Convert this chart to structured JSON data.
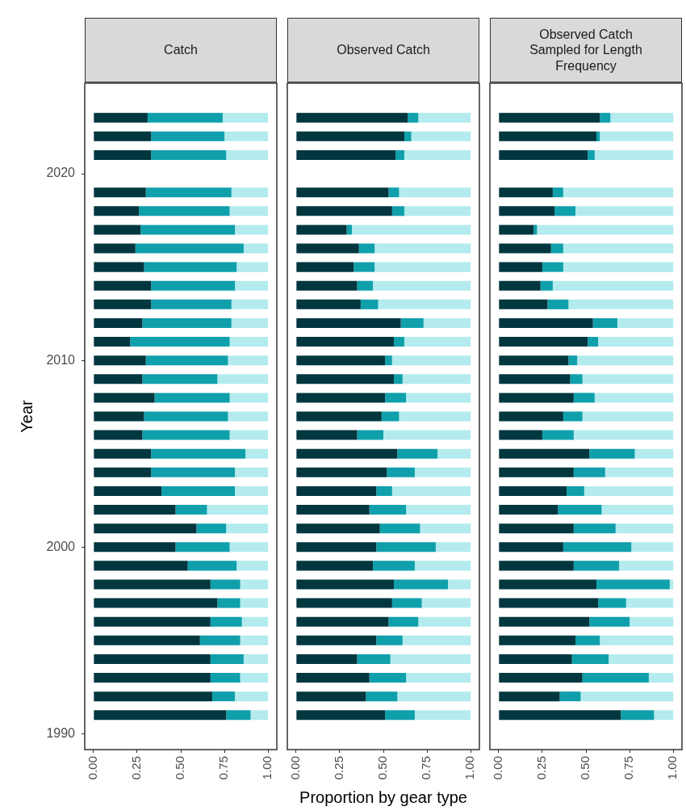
{
  "chart_data": [
    {
      "type": "bar",
      "title": "Catch",
      "ylabel": "Year",
      "orientation": "horizontal",
      "stacked": true,
      "grid": false,
      "x": [
        2023,
        2022,
        2021,
        2019,
        2018,
        2017,
        2016,
        2015,
        2014,
        2013,
        2012,
        2011,
        2010,
        2009,
        2008,
        2007,
        2006,
        2005,
        2004,
        2003,
        2002,
        2001,
        2000,
        1999,
        1998,
        1997,
        1996,
        1995,
        1994,
        1993,
        1992,
        1991
      ],
      "xlim": [
        -0.05,
        1.05
      ],
      "xticks": [
        {
          "value": 0,
          "label": "0.00"
        },
        {
          "value": 0.25,
          "label": "0.25"
        },
        {
          "value": 0.5,
          "label": "0.50"
        },
        {
          "value": 0.75,
          "label": "0.75"
        },
        {
          "value": 1,
          "label": "1.00"
        }
      ],
      "ylim": [
        1989.15,
        2024.85
      ],
      "yticks": [
        1990,
        2000,
        2010,
        2020
      ],
      "series": [
        {
          "color": "#023740",
          "values": [
            0.31,
            0.33,
            0.33,
            0.3,
            0.26,
            0.27,
            0.24,
            0.29,
            0.33,
            0.33,
            0.28,
            0.21,
            0.3,
            0.28,
            0.35,
            0.29,
            0.28,
            0.33,
            0.33,
            0.39,
            0.47,
            0.59,
            0.47,
            0.54,
            0.67,
            0.71,
            0.67,
            0.61,
            0.67,
            0.67,
            0.68,
            0.76
          ]
        },
        {
          "color": "#0fa0ab",
          "values": [
            0.43,
            0.42,
            0.43,
            0.49,
            0.52,
            0.54,
            0.62,
            0.53,
            0.48,
            0.46,
            0.51,
            0.57,
            0.47,
            0.43,
            0.43,
            0.48,
            0.5,
            0.54,
            0.48,
            0.42,
            0.18,
            0.17,
            0.31,
            0.28,
            0.17,
            0.13,
            0.18,
            0.23,
            0.19,
            0.17,
            0.13,
            0.14
          ]
        },
        {
          "color": "#b3ebee",
          "values": [
            0.26,
            0.25,
            0.24,
            0.21,
            0.22,
            0.19,
            0.14,
            0.18,
            0.19,
            0.21,
            0.21,
            0.22,
            0.23,
            0.29,
            0.22,
            0.23,
            0.22,
            0.13,
            0.19,
            0.19,
            0.35,
            0.24,
            0.22,
            0.18,
            0.16,
            0.16,
            0.15,
            0.16,
            0.14,
            0.16,
            0.19,
            0.1
          ]
        }
      ]
    },
    {
      "type": "bar",
      "title": "Observed Catch",
      "xlabel": "Proportion by gear type",
      "orientation": "horizontal",
      "stacked": true,
      "grid": false,
      "tick_labels": "x",
      "x": [
        2023,
        2022,
        2021,
        2019,
        2018,
        2017,
        2016,
        2015,
        2014,
        2013,
        2012,
        2011,
        2010,
        2009,
        2008,
        2007,
        2006,
        2005,
        2004,
        2003,
        2002,
        2001,
        2000,
        1999,
        1998,
        1997,
        1996,
        1995,
        1994,
        1993,
        1992,
        1991
      ],
      "xlim": [
        -0.05,
        1.05
      ],
      "xticks": [
        {
          "value": 0,
          "label": "0.00"
        },
        {
          "value": 0.25,
          "label": "0.25"
        },
        {
          "value": 0.5,
          "label": "0.50"
        },
        {
          "value": 0.75,
          "label": "0.75"
        },
        {
          "value": 1,
          "label": "1.00"
        }
      ],
      "ylim": [
        1989.15,
        2024.85
      ],
      "yticks": [
        1990,
        2000,
        2010,
        2020
      ],
      "series": [
        {
          "color": "#023740",
          "values": [
            0.64,
            0.62,
            0.57,
            0.53,
            0.55,
            0.29,
            0.36,
            0.33,
            0.35,
            0.37,
            0.6,
            0.56,
            0.51,
            0.56,
            0.51,
            0.49,
            0.35,
            0.58,
            0.52,
            0.46,
            0.42,
            0.48,
            0.46,
            0.44,
            0.56,
            0.55,
            0.53,
            0.46,
            0.35,
            0.42,
            0.4,
            0.51
          ]
        },
        {
          "color": "#0fa0ab",
          "values": [
            0.06,
            0.04,
            0.05,
            0.06,
            0.07,
            0.03,
            0.09,
            0.12,
            0.09,
            0.1,
            0.13,
            0.06,
            0.04,
            0.05,
            0.12,
            0.1,
            0.15,
            0.23,
            0.16,
            0.09,
            0.21,
            0.23,
            0.34,
            0.24,
            0.31,
            0.17,
            0.17,
            0.15,
            0.19,
            0.21,
            0.18,
            0.17
          ]
        },
        {
          "color": "#b3ebee",
          "values": [
            0.3,
            0.34,
            0.38,
            0.41,
            0.38,
            0.68,
            0.55,
            0.55,
            0.56,
            0.53,
            0.27,
            0.38,
            0.45,
            0.39,
            0.37,
            0.41,
            0.5,
            0.19,
            0.32,
            0.45,
            0.37,
            0.29,
            0.2,
            0.32,
            0.13,
            0.28,
            0.3,
            0.39,
            0.46,
            0.37,
            0.42,
            0.32
          ]
        }
      ]
    },
    {
      "type": "bar",
      "title": "Observed Catch\nSampled for Length\nFrequency",
      "orientation": "horizontal",
      "stacked": true,
      "grid": false,
      "tick_labels": "x",
      "x": [
        2023,
        2022,
        2021,
        2019,
        2018,
        2017,
        2016,
        2015,
        2014,
        2013,
        2012,
        2011,
        2010,
        2009,
        2008,
        2007,
        2006,
        2005,
        2004,
        2003,
        2002,
        2001,
        2000,
        1999,
        1998,
        1997,
        1996,
        1995,
        1994,
        1993,
        1992,
        1991
      ],
      "xlim": [
        -0.05,
        1.05
      ],
      "xticks": [
        {
          "value": 0,
          "label": "0.00"
        },
        {
          "value": 0.25,
          "label": "0.25"
        },
        {
          "value": 0.5,
          "label": "0.50"
        },
        {
          "value": 0.75,
          "label": "0.75"
        },
        {
          "value": 1,
          "label": "1.00"
        }
      ],
      "ylim": [
        1989.15,
        2024.85
      ],
      "yticks": [
        1990,
        2000,
        2010,
        2020
      ],
      "series": [
        {
          "color": "#023740",
          "values": [
            0.58,
            0.56,
            0.51,
            0.31,
            0.32,
            0.2,
            0.3,
            0.25,
            0.24,
            0.28,
            0.54,
            0.51,
            0.4,
            0.41,
            0.43,
            0.37,
            0.25,
            0.52,
            0.43,
            0.39,
            0.34,
            0.43,
            0.37,
            0.43,
            0.56,
            0.57,
            0.52,
            0.44,
            0.42,
            0.48,
            0.35,
            0.7
          ]
        },
        {
          "color": "#0fa0ab",
          "values": [
            0.06,
            0.02,
            0.04,
            0.06,
            0.12,
            0.02,
            0.07,
            0.12,
            0.07,
            0.12,
            0.14,
            0.06,
            0.05,
            0.07,
            0.12,
            0.11,
            0.18,
            0.26,
            0.18,
            0.1,
            0.25,
            0.24,
            0.39,
            0.26,
            0.42,
            0.16,
            0.23,
            0.14,
            0.21,
            0.38,
            0.12,
            0.19
          ]
        },
        {
          "color": "#b3ebee",
          "values": [
            0.36,
            0.42,
            0.45,
            0.63,
            0.56,
            0.78,
            0.63,
            0.63,
            0.69,
            0.6,
            0.32,
            0.43,
            0.55,
            0.52,
            0.45,
            0.52,
            0.57,
            0.22,
            0.39,
            0.51,
            0.41,
            0.33,
            0.24,
            0.31,
            0.02,
            0.27,
            0.25,
            0.42,
            0.37,
            0.14,
            0.53,
            0.11
          ]
        }
      ]
    }
  ]
}
